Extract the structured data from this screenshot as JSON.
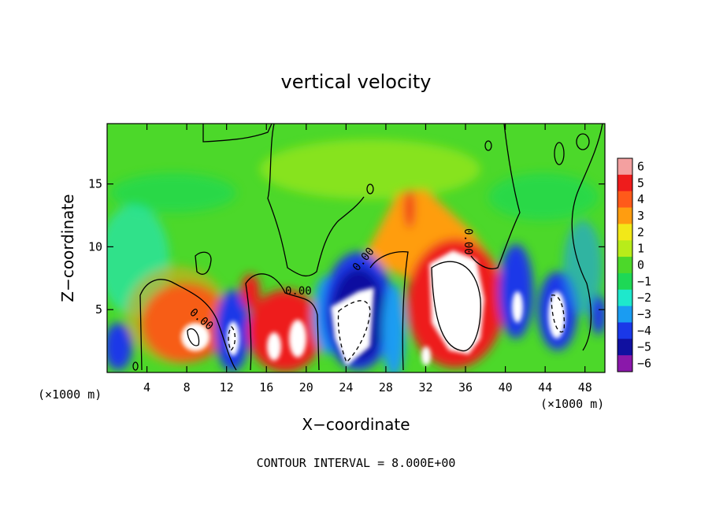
{
  "chart_data": {
    "type": "heatmap",
    "title": "vertical velocity",
    "xlabel": "X−coordinate",
    "ylabel": "Z−coordinate",
    "x_unit_left": "(×1000 m)",
    "x_unit_right": "(×1000 m)",
    "footer": "CONTOUR INTERVAL = 8.000E+00",
    "xlim": [
      0,
      50
    ],
    "ylim": [
      0,
      19.8
    ],
    "x_ticks": [
      4,
      8,
      12,
      16,
      20,
      24,
      28,
      32,
      36,
      40,
      44,
      48
    ],
    "x_tick_labels": [
      "4",
      "8",
      "12",
      "16",
      "20",
      "24",
      "28",
      "32",
      "36",
      "40",
      "44",
      "48"
    ],
    "y_ticks": [
      5,
      10,
      15
    ],
    "y_tick_labels": [
      "5",
      "10",
      "15"
    ],
    "colorbar": {
      "levels": [
        6,
        5,
        4,
        3,
        2,
        1,
        0,
        -1,
        -2,
        -3,
        -4,
        -5,
        -6
      ],
      "labels": [
        "6",
        "5",
        "4",
        "3",
        "2",
        "1",
        "0",
        "−1",
        "−2",
        "−3",
        "−4",
        "−5",
        "−6"
      ],
      "colors": [
        "#f4a0a0",
        "#ee1c1c",
        "#ff5a1a",
        "#ff9d10",
        "#f2e818",
        "#b8ec1a",
        "#4cd82a",
        "#1ed856",
        "#1ee8cc",
        "#1a9cf2",
        "#1a38e8",
        "#1010a0",
        "#8a18aa"
      ]
    },
    "features": [
      {
        "kind": "updraft",
        "x": 9,
        "z": 3.5,
        "peak": 6
      },
      {
        "kind": "downdraft",
        "x": 12.8,
        "z": 3.5,
        "peak": -6
      },
      {
        "kind": "updraft",
        "x": 14.5,
        "z": 6.5,
        "peak": 4
      },
      {
        "kind": "updraft",
        "x": 17,
        "z": 2.5,
        "peak": 6
      },
      {
        "kind": "updraft",
        "x": 19.3,
        "z": 3.8,
        "peak": 6
      },
      {
        "kind": "downdraft",
        "x": 25,
        "z": 4.5,
        "peak": -6
      },
      {
        "kind": "updraft",
        "x": 33.5,
        "z": 6.5,
        "peak": 6
      },
      {
        "kind": "downdraft",
        "x": 41,
        "z": 5.5,
        "peak": -6
      },
      {
        "kind": "downdraft",
        "x": 45.5,
        "z": 4.5,
        "peak": -6
      }
    ],
    "contour_labels": [
      "0.00",
      "0.00",
      "0.00",
      "0.00"
    ],
    "grid": false,
    "legend_position": "right"
  }
}
